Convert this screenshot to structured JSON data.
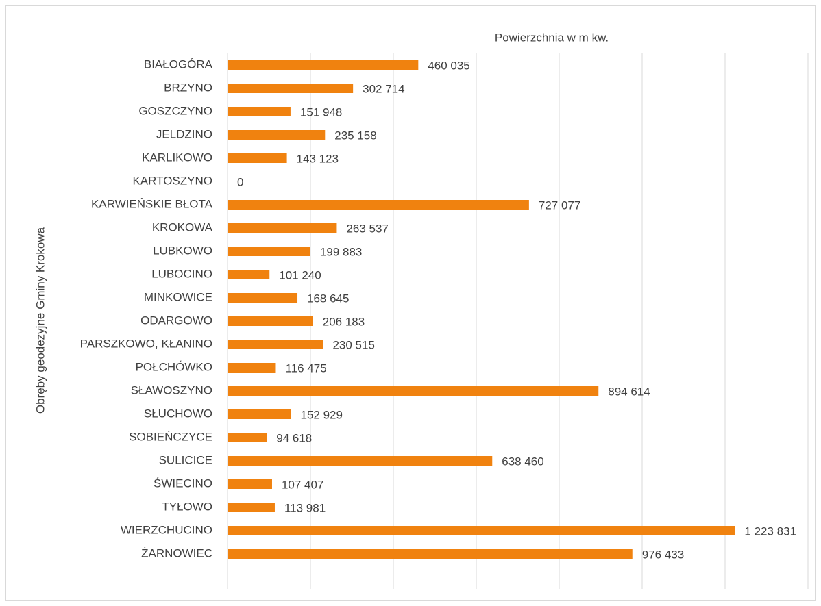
{
  "chart_data": {
    "type": "bar",
    "orientation": "horizontal",
    "title": "Powierzchnia w m kw.",
    "y_label": "Obręby geodezyjne Gminy Krokowa",
    "categories": [
      "BIAŁOGÓRA",
      "BRZYNO",
      "GOSZCZYNO",
      "JELDZINO",
      "KARLIKOWO",
      "KARTOSZYNO",
      "KARWIEŃSKIE BŁOTA",
      "KROKOWA",
      "LUBKOWO",
      "LUBOCINO",
      "MINKOWICE",
      "ODARGOWO",
      "PARSZKOWO, KŁANINO",
      "POŁCHÓWKO",
      "SŁAWOSZYNO",
      "SŁUCHOWO",
      "SOBIEŃCZYCE",
      "SULICICE",
      "ŚWIECINO",
      "TYŁOWO",
      "WIERZCHUCINO",
      "ŻARNOWIEC"
    ],
    "values": [
      460035,
      302714,
      151948,
      235158,
      143123,
      0,
      727077,
      263537,
      199883,
      101240,
      168645,
      206183,
      230515,
      116475,
      894614,
      152929,
      94618,
      638460,
      107407,
      113981,
      1223831,
      976433
    ],
    "value_labels": [
      "460 035",
      "302 714",
      "151 948",
      "235 158",
      "143 123",
      "0",
      "727 077",
      "263 537",
      "199 883",
      "101 240",
      "168 645",
      "206 183",
      "230 515",
      "116 475",
      "894 614",
      "152 929",
      "94 618",
      "638 460",
      "107 407",
      "113 981",
      "1 223 831",
      "976 433"
    ],
    "color": "#f0820f",
    "xlim": [
      0,
      1400000
    ],
    "xticks": [
      0,
      200000,
      400000,
      600000,
      800000,
      1000000,
      1200000,
      1400000
    ],
    "grid": true
  }
}
